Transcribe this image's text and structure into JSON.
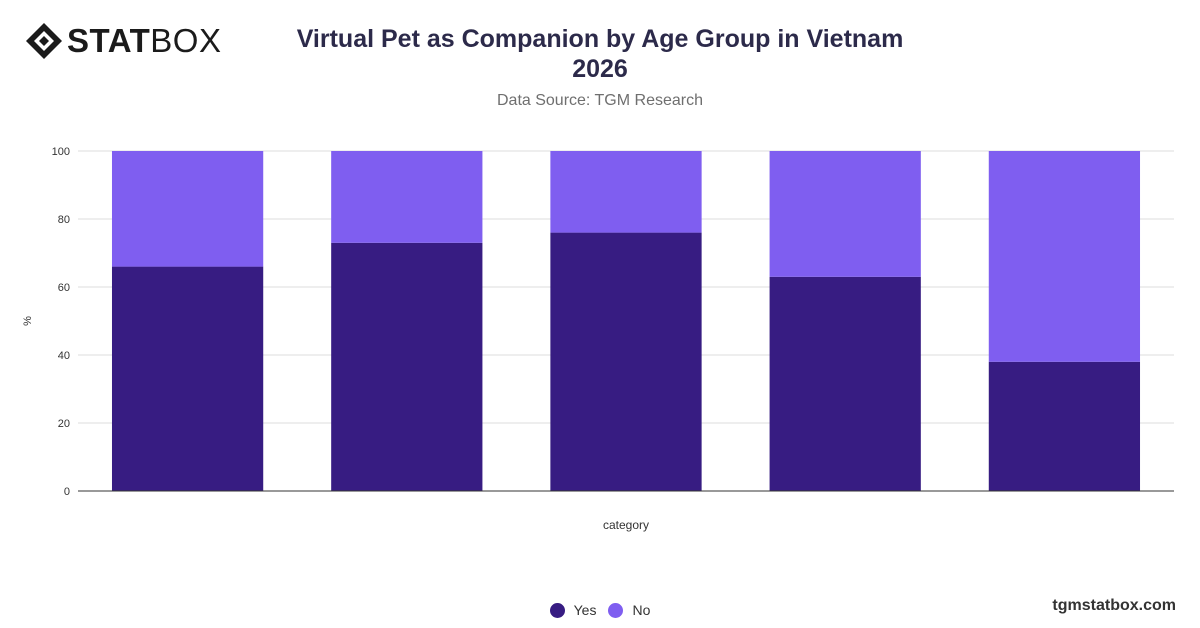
{
  "brand": {
    "logo_bold": "STAT",
    "logo_light": "BOX"
  },
  "header": {
    "title": "Virtual Pet as Companion by Age Group in Vietnam 2026",
    "subtitle": "Data Source: TGM Research"
  },
  "footer": {
    "site": "tgmstatbox.com"
  },
  "colors": {
    "yes": "#371c82",
    "no": "#7f5ef0"
  },
  "chart_data": {
    "type": "bar",
    "stacked": true,
    "categories": [
      "",
      "",
      "",
      "",
      ""
    ],
    "series": [
      {
        "name": "Yes",
        "values": [
          66,
          73,
          76,
          63,
          38
        ]
      },
      {
        "name": "No",
        "values": [
          34,
          27,
          24,
          37,
          62
        ]
      }
    ],
    "xlabel": "category",
    "ylabel": "%",
    "ylim": [
      0,
      100
    ],
    "yticks": [
      0,
      20,
      40,
      60,
      80,
      100
    ],
    "grid": true,
    "legend_position": "bottom"
  }
}
